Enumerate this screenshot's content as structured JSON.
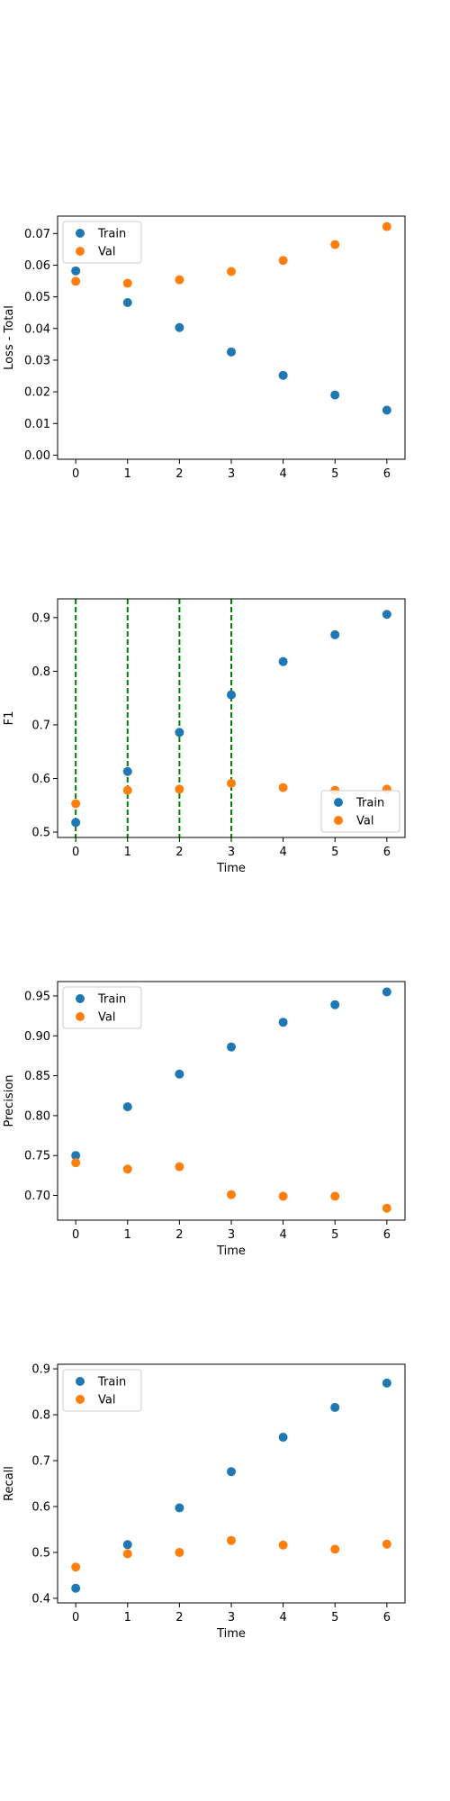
{
  "colors": {
    "train": "#1f77b4",
    "val": "#ff7f0e",
    "vline": "#008000"
  },
  "chart_data": [
    {
      "type": "scatter",
      "xlabel": "",
      "ylabel": "Loss - Total",
      "x": [
        0,
        1,
        2,
        3,
        4,
        5,
        6
      ],
      "xlim": [
        -0.35,
        6.35
      ],
      "ylim": [
        -0.0013,
        0.0755
      ],
      "xticks": [
        0,
        1,
        2,
        3,
        4,
        5,
        6
      ],
      "yticks": [
        0.0,
        0.01,
        0.02,
        0.03,
        0.04,
        0.05,
        0.06,
        0.07
      ],
      "ytick_labels": [
        "0.00",
        "0.01",
        "0.02",
        "0.03",
        "0.04",
        "0.05",
        "0.06",
        "0.07"
      ],
      "legend_position": "upper-left",
      "vlines": [],
      "series": [
        {
          "name": "Train",
          "color": "#1f77b4",
          "values": [
            0.0582,
            0.0482,
            0.0403,
            0.0326,
            0.0252,
            0.019,
            0.0142
          ]
        },
        {
          "name": "Val",
          "color": "#ff7f0e",
          "values": [
            0.0549,
            0.0543,
            0.0554,
            0.058,
            0.0615,
            0.0665,
            0.0722
          ]
        }
      ]
    },
    {
      "type": "scatter",
      "xlabel": "Time",
      "ylabel": "F1",
      "x": [
        0,
        1,
        2,
        3,
        4,
        5,
        6
      ],
      "xlim": [
        -0.35,
        6.35
      ],
      "ylim": [
        0.49,
        0.935
      ],
      "xticks": [
        0,
        1,
        2,
        3,
        4,
        5,
        6
      ],
      "yticks": [
        0.5,
        0.6,
        0.7,
        0.8,
        0.9
      ],
      "ytick_labels": [
        "0.5",
        "0.6",
        "0.7",
        "0.8",
        "0.9"
      ],
      "legend_position": "lower-right",
      "vlines": [
        0,
        1,
        2,
        3
      ],
      "series": [
        {
          "name": "Train",
          "color": "#1f77b4",
          "values": [
            0.518,
            0.613,
            0.686,
            0.756,
            0.818,
            0.868,
            0.906
          ]
        },
        {
          "name": "Val",
          "color": "#ff7f0e",
          "values": [
            0.553,
            0.578,
            0.58,
            0.591,
            0.583,
            0.578,
            0.58
          ]
        }
      ]
    },
    {
      "type": "scatter",
      "xlabel": "Time",
      "ylabel": "Precision",
      "x": [
        0,
        1,
        2,
        3,
        4,
        5,
        6
      ],
      "xlim": [
        -0.35,
        6.35
      ],
      "ylim": [
        0.669,
        0.968
      ],
      "xticks": [
        0,
        1,
        2,
        3,
        4,
        5,
        6
      ],
      "yticks": [
        0.7,
        0.75,
        0.8,
        0.85,
        0.9,
        0.95
      ],
      "ytick_labels": [
        "0.70",
        "0.75",
        "0.80",
        "0.85",
        "0.90",
        "0.95"
      ],
      "legend_position": "upper-left",
      "vlines": [],
      "series": [
        {
          "name": "Train",
          "color": "#1f77b4",
          "values": [
            0.75,
            0.811,
            0.852,
            0.886,
            0.917,
            0.939,
            0.955
          ]
        },
        {
          "name": "Val",
          "color": "#ff7f0e",
          "values": [
            0.741,
            0.733,
            0.736,
            0.701,
            0.699,
            0.699,
            0.684
          ]
        }
      ]
    },
    {
      "type": "scatter",
      "xlabel": "Time",
      "ylabel": "Recall",
      "x": [
        0,
        1,
        2,
        3,
        4,
        5,
        6
      ],
      "xlim": [
        -0.35,
        6.35
      ],
      "ylim": [
        0.39,
        0.91
      ],
      "xticks": [
        0,
        1,
        2,
        3,
        4,
        5,
        6
      ],
      "yticks": [
        0.4,
        0.5,
        0.6,
        0.7,
        0.8,
        0.9
      ],
      "ytick_labels": [
        "0.4",
        "0.5",
        "0.6",
        "0.7",
        "0.8",
        "0.9"
      ],
      "legend_position": "upper-left",
      "vlines": [],
      "series": [
        {
          "name": "Train",
          "color": "#1f77b4",
          "values": [
            0.422,
            0.517,
            0.597,
            0.676,
            0.751,
            0.816,
            0.869
          ]
        },
        {
          "name": "Val",
          "color": "#ff7f0e",
          "values": [
            0.468,
            0.497,
            0.5,
            0.526,
            0.516,
            0.507,
            0.518
          ]
        }
      ]
    }
  ]
}
